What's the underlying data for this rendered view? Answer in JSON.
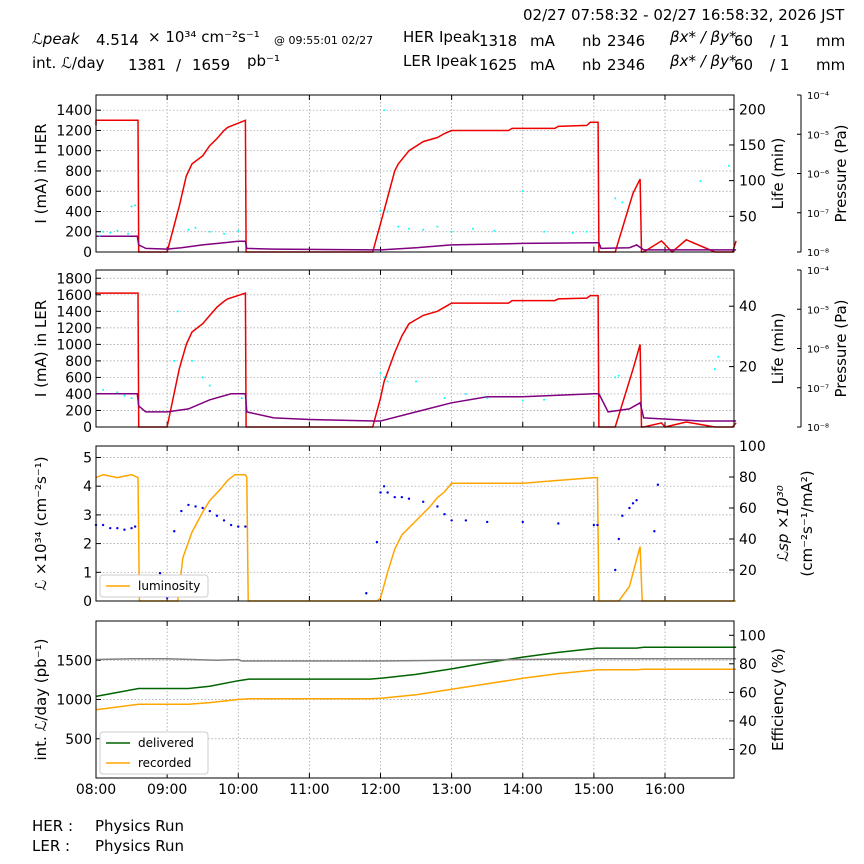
{
  "header": {
    "time_range": "02/27 07:58:32 - 02/27 16:58:32, 2026 JST",
    "lpeak_label": "ℒpeak",
    "lpeak_value": "4.514",
    "lpeak_unit": "× 10³⁴ cm⁻²s⁻¹",
    "lpeak_time": "@ 09:55:01 02/27",
    "intl_label": "int. ℒ/day",
    "intl_recorded": "1381",
    "intl_sep": "/",
    "intl_delivered": "1659",
    "intl_unit": "pb⁻¹",
    "her_label": "HER Ipeak",
    "her_current": "1318",
    "her_unit": "mA",
    "her_nb_label": "nb",
    "her_nb": "2346",
    "her_beta_label": "βx* / βy*",
    "her_beta_x": "60",
    "her_beta_y": "/ 1",
    "her_beta_unit": "mm",
    "ler_label": "LER Ipeak",
    "ler_current": "1625",
    "ler_unit": "mA",
    "ler_nb_label": "nb",
    "ler_nb": "2346",
    "ler_beta_label": "βx* / βy*",
    "ler_beta_x": "60",
    "ler_beta_y": "/ 1",
    "ler_beta_unit": "mm"
  },
  "footer": {
    "her_label": "HER :",
    "her_status": "Physics Run",
    "ler_label": "LER :",
    "ler_status": "Physics Run"
  },
  "colors": {
    "current": "#ee0000",
    "life": "#800080",
    "pressure": "#00ffff",
    "luminosity": "#ffa500",
    "specific": "#0000ee",
    "delivered": "#006400",
    "recorded": "#ffa500",
    "efficiency": "#808080",
    "grid": "#999999"
  },
  "chart_data": [
    {
      "type": "line",
      "id": "her",
      "ylabel": "I (mA) in HER",
      "ylabel_right": "Life (min)",
      "ylabel_far": "Pressure (Pa)",
      "ylim": [
        0,
        1550
      ],
      "yticks": [
        0,
        200,
        400,
        600,
        800,
        1000,
        1200,
        1400
      ],
      "yright_lim": [
        0,
        220
      ],
      "yright_ticks": [
        50,
        100,
        150,
        200
      ],
      "pressure_ticks": [
        "10⁻⁴",
        "10⁻⁵",
        "10⁻⁶",
        "10⁻⁷",
        "10⁻⁸"
      ],
      "series": [
        {
          "key": "current",
          "axis": "left",
          "x": [
            8.0,
            8.0,
            8.1,
            8.59,
            8.6,
            8.61,
            9.0,
            9.17,
            9.27,
            9.35,
            9.5,
            9.6,
            9.7,
            9.8,
            9.85,
            10.1,
            10.11,
            10.13,
            11.89,
            12.05,
            12.2,
            12.25,
            12.4,
            12.6,
            12.8,
            12.9,
            13.0,
            13.8,
            13.85,
            14.45,
            14.5,
            14.9,
            14.95,
            15.06,
            15.07,
            15.3,
            15.55,
            15.65,
            15.67,
            15.7,
            15.95,
            16.1,
            16.3,
            16.7,
            16.95,
            17.0
          ],
          "y": [
            1250,
            1300,
            1300,
            1300,
            0,
            0,
            0,
            450,
            750,
            870,
            950,
            1050,
            1120,
            1200,
            1230,
            1300,
            0,
            0,
            0,
            410,
            800,
            870,
            1000,
            1090,
            1130,
            1170,
            1200,
            1200,
            1220,
            1220,
            1240,
            1250,
            1280,
            1280,
            0,
            0,
            580,
            720,
            0,
            0,
            110,
            0,
            120,
            0,
            0,
            110
          ]
        },
        {
          "key": "life",
          "axis": "right",
          "x": [
            8.0,
            8.58,
            8.6,
            8.7,
            9.0,
            9.2,
            9.5,
            9.8,
            10.0,
            10.1,
            10.12,
            10.5,
            11.9,
            12.0,
            12.5,
            13.0,
            14.0,
            15.0,
            15.07,
            15.1,
            15.5,
            15.6,
            15.7,
            16.5,
            17.0
          ],
          "y": [
            22,
            22,
            10,
            5,
            4,
            6,
            10,
            13,
            15,
            15,
            5,
            4,
            3,
            3,
            6,
            10,
            12,
            13,
            13,
            5,
            6,
            10,
            3,
            3,
            3
          ]
        },
        {
          "key": "pressure",
          "axis": "left",
          "style": "scatter",
          "x": [
            8.05,
            8.1,
            8.2,
            8.3,
            8.45,
            8.5,
            8.55,
            9.3,
            9.4,
            9.6,
            9.8,
            10.0,
            12.0,
            12.05,
            12.1,
            12.25,
            12.4,
            12.6,
            12.8,
            13.0,
            13.3,
            13.6,
            14.0,
            14.3,
            14.7,
            14.9,
            15.3,
            15.4,
            16.5,
            16.9
          ],
          "y": [
            160,
            200,
            190,
            210,
            180,
            450,
            460,
            220,
            240,
            200,
            180,
            210,
            410,
            1400,
            400,
            250,
            230,
            220,
            250,
            200,
            230,
            210,
            600,
            200,
            190,
            200,
            530,
            490,
            700,
            850
          ]
        }
      ]
    },
    {
      "type": "line",
      "id": "ler",
      "ylabel": "I (mA) in LER",
      "ylabel_right": "Life (min)",
      "ylabel_far": "Pressure (Pa)",
      "ylim": [
        0,
        1900
      ],
      "yticks": [
        0,
        200,
        400,
        600,
        800,
        1000,
        1200,
        1400,
        1600,
        1800
      ],
      "yright_lim": [
        0,
        52
      ],
      "yright_ticks": [
        20,
        40
      ],
      "pressure_ticks": [
        "10⁻⁴",
        "10⁻⁵",
        "10⁻⁶",
        "10⁻⁷",
        "10⁻⁸"
      ],
      "series": [
        {
          "key": "current",
          "axis": "left",
          "x": [
            8.0,
            8.0,
            8.1,
            8.59,
            8.6,
            8.61,
            9.0,
            9.17,
            9.27,
            9.35,
            9.5,
            9.6,
            9.7,
            9.8,
            9.85,
            10.1,
            10.11,
            10.13,
            11.89,
            12.0,
            12.05,
            12.2,
            12.3,
            12.4,
            12.6,
            12.8,
            12.9,
            13.0,
            13.8,
            13.85,
            14.45,
            14.5,
            14.9,
            14.95,
            15.06,
            15.07,
            15.3,
            15.55,
            15.65,
            15.67,
            15.7,
            15.95,
            16.0,
            16.3,
            16.7,
            16.95,
            17.0
          ],
          "y": [
            1600,
            1620,
            1620,
            1620,
            0,
            0,
            0,
            700,
            1000,
            1150,
            1250,
            1350,
            1450,
            1520,
            1550,
            1620,
            0,
            0,
            0,
            350,
            550,
            900,
            1100,
            1250,
            1350,
            1400,
            1450,
            1500,
            1500,
            1530,
            1530,
            1550,
            1560,
            1590,
            1590,
            0,
            0,
            700,
            1000,
            0,
            0,
            50,
            0,
            60,
            0,
            0,
            50
          ]
        },
        {
          "key": "life",
          "axis": "right",
          "x": [
            8.0,
            8.58,
            8.6,
            8.7,
            9.0,
            9.3,
            9.6,
            9.9,
            10.1,
            10.12,
            10.5,
            11.0,
            11.9,
            12.0,
            12.5,
            13.0,
            13.5,
            14.0,
            15.0,
            15.07,
            15.2,
            15.5,
            15.65,
            15.7,
            16.5,
            17.0
          ],
          "y": [
            11,
            11,
            7,
            5,
            5,
            6,
            9,
            11,
            11,
            5,
            3,
            2.5,
            2,
            2,
            5,
            8,
            10,
            10,
            11,
            11,
            5,
            6,
            8,
            3,
            2,
            2
          ]
        },
        {
          "key": "pressure",
          "axis": "left",
          "style": "scatter",
          "x": [
            8.1,
            8.3,
            8.4,
            8.5,
            9.1,
            9.15,
            9.35,
            9.5,
            9.6,
            10.05,
            12.0,
            12.05,
            12.1,
            12.5,
            12.9,
            13.2,
            13.5,
            14.0,
            14.3,
            15.3,
            15.35,
            16.7,
            16.75
          ],
          "y": [
            450,
            420,
            380,
            350,
            800,
            1400,
            800,
            600,
            500,
            350,
            650,
            600,
            550,
            550,
            350,
            400,
            350,
            320,
            330,
            600,
            620,
            700,
            850
          ]
        }
      ]
    },
    {
      "type": "line",
      "id": "lumi",
      "ylabel": "ℒ ×10³⁴ (cm⁻²s⁻¹)",
      "ylabel_right": "ℒsp ×10³⁰",
      "ylabel_right2": "(cm⁻²s⁻¹/mA²)",
      "ylim": [
        0,
        5.4
      ],
      "yticks": [
        0,
        1,
        2,
        3,
        4,
        5
      ],
      "yright_lim": [
        0,
        100
      ],
      "yright_ticks": [
        20,
        40,
        60,
        80,
        100
      ],
      "legend": [
        "luminosity"
      ],
      "series": [
        {
          "key": "luminosity",
          "axis": "left",
          "name": "luminosity",
          "x": [
            8.0,
            8.1,
            8.3,
            8.5,
            8.59,
            8.61,
            9.0,
            9.15,
            9.22,
            9.35,
            9.5,
            9.6,
            9.75,
            9.85,
            9.95,
            10.1,
            10.12,
            10.14,
            11.89,
            11.95,
            12.0,
            12.1,
            12.2,
            12.3,
            12.5,
            12.7,
            12.8,
            12.9,
            13.0,
            13.3,
            14.0,
            14.5,
            15.0,
            15.05,
            15.07,
            15.35,
            15.5,
            15.65,
            15.68,
            15.7,
            17.0
          ],
          "y": [
            4.3,
            4.4,
            4.3,
            4.4,
            4.3,
            0,
            0,
            0,
            1.5,
            2.4,
            3.1,
            3.5,
            3.9,
            4.2,
            4.4,
            4.4,
            4.3,
            0,
            0,
            0,
            0.1,
            1.0,
            1.8,
            2.3,
            2.8,
            3.3,
            3.6,
            3.8,
            4.1,
            4.1,
            4.1,
            4.2,
            4.3,
            4.3,
            0,
            0,
            0.5,
            1.9,
            0,
            0,
            0
          ]
        },
        {
          "key": "specific",
          "axis": "right",
          "style": "dots",
          "x": [
            8.0,
            8.1,
            8.2,
            8.3,
            8.4,
            8.5,
            8.55,
            8.9,
            8.95,
            9.0,
            9.1,
            9.2,
            9.3,
            9.4,
            9.5,
            9.6,
            9.7,
            9.8,
            9.9,
            10.0,
            10.1,
            11.8,
            11.95,
            12.0,
            12.05,
            12.1,
            12.2,
            12.3,
            12.4,
            12.6,
            12.8,
            12.9,
            13.0,
            13.2,
            13.5,
            14.0,
            14.5,
            15.0,
            15.05,
            15.3,
            15.35,
            15.4,
            15.5,
            15.55,
            15.6,
            15.85,
            15.9
          ],
          "y": [
            49,
            49,
            47,
            47,
            46,
            47,
            48,
            18,
            8,
            2,
            45,
            58,
            62,
            61,
            60,
            58,
            55,
            52,
            49,
            48,
            48,
            5,
            38,
            70,
            74,
            70,
            67,
            67,
            66,
            64,
            61,
            56,
            52,
            52,
            51,
            51,
            50,
            49,
            49,
            20,
            40,
            55,
            60,
            63,
            65,
            45,
            75
          ]
        }
      ]
    },
    {
      "type": "line",
      "id": "intl",
      "ylabel": "int. ℒ/day (pb⁻¹)",
      "ylabel_right": "Efficiency (%)",
      "ylim": [
        0,
        2000
      ],
      "yticks": [
        500,
        1000,
        1500
      ],
      "yright_lim": [
        0,
        110
      ],
      "yright_ticks": [
        20,
        40,
        60,
        80,
        100
      ],
      "legend": [
        "delivered",
        "recorded"
      ],
      "series": [
        {
          "key": "delivered",
          "axis": "left",
          "name": "delivered",
          "x": [
            8.0,
            8.6,
            9.3,
            9.6,
            10.0,
            10.15,
            11.85,
            12.0,
            12.5,
            13.0,
            13.5,
            14.0,
            14.5,
            15.0,
            15.05,
            15.6,
            15.7,
            17.0
          ],
          "y": [
            1040,
            1140,
            1140,
            1170,
            1240,
            1260,
            1260,
            1270,
            1320,
            1390,
            1470,
            1540,
            1600,
            1650,
            1655,
            1655,
            1665,
            1665
          ]
        },
        {
          "key": "recorded",
          "axis": "left",
          "name": "recorded",
          "x": [
            8.0,
            8.6,
            9.3,
            9.6,
            10.0,
            10.15,
            11.85,
            12.0,
            12.5,
            13.0,
            13.5,
            14.0,
            14.5,
            15.0,
            15.05,
            15.6,
            15.7,
            17.0
          ],
          "y": [
            870,
            940,
            940,
            960,
            1000,
            1010,
            1010,
            1015,
            1060,
            1130,
            1200,
            1270,
            1330,
            1375,
            1380,
            1380,
            1385,
            1385
          ]
        },
        {
          "key": "efficiency",
          "axis": "right",
          "x": [
            8.0,
            8.5,
            9.0,
            9.7,
            10.0,
            10.05,
            11.0,
            12.0,
            13.0,
            14.0,
            15.0,
            16.0,
            17.0
          ],
          "y": [
            83,
            83.5,
            83.5,
            82.5,
            83,
            82,
            82,
            82,
            82.5,
            83,
            83.5,
            83.5,
            83.5
          ]
        }
      ]
    }
  ],
  "xaxis": {
    "xlim": [
      8.0,
      16.97
    ],
    "tick_values": [
      8,
      9,
      10,
      11,
      12,
      13,
      14,
      15,
      16
    ],
    "tick_labels": [
      "08:00",
      "09:00",
      "10:00",
      "11:00",
      "12:00",
      "13:00",
      "14:00",
      "15:00",
      "16:00"
    ]
  }
}
